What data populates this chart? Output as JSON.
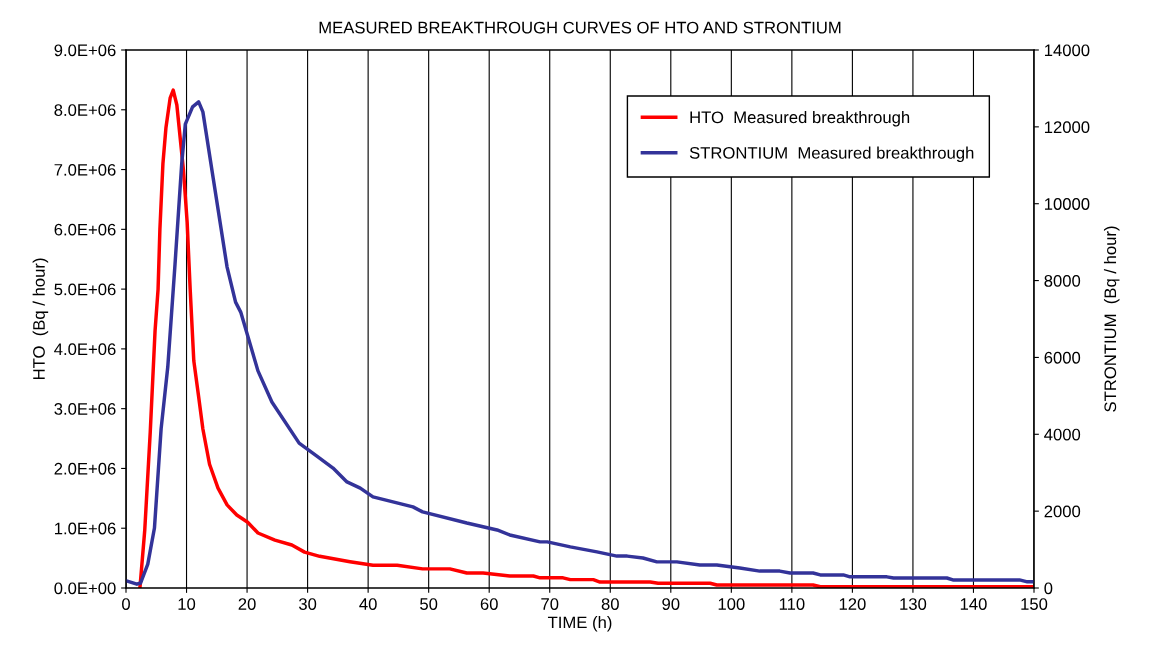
{
  "chart_data": {
    "type": "line",
    "title": "MEASURED BREAKTHROUGH CURVES OF HTO AND STRONTIUM",
    "xlabel": "TIME (h)",
    "ylabel": "HTO  (Bq / hour)",
    "y2label": "STRONTIUM  (Bq / hour)",
    "xlim": [
      0,
      150
    ],
    "xticks": [
      0,
      10,
      20,
      30,
      40,
      50,
      60,
      70,
      80,
      90,
      100,
      110,
      120,
      130,
      140,
      150
    ],
    "ylim": [
      0,
      9000000
    ],
    "yticks": [
      {
        "value": 0,
        "label": "0.0E+00"
      },
      {
        "value": 1000000,
        "label": "1.0E+06"
      },
      {
        "value": 2000000,
        "label": "2.0E+06"
      },
      {
        "value": 3000000,
        "label": "3.0E+06"
      },
      {
        "value": 4000000,
        "label": "4.0E+06"
      },
      {
        "value": 5000000,
        "label": "5.0E+06"
      },
      {
        "value": 6000000,
        "label": "6.0E+06"
      },
      {
        "value": 7000000,
        "label": "7.0E+06"
      },
      {
        "value": 8000000,
        "label": "8.0E+06"
      },
      {
        "value": 9000000,
        "label": "9.0E+06"
      }
    ],
    "y2lim": [
      0,
      14000
    ],
    "y2ticks": [
      0,
      2000,
      4000,
      6000,
      8000,
      10000,
      12000,
      14000
    ],
    "grid": "x",
    "legend": "top right",
    "line_style": "solid",
    "marker": "none",
    "series": [
      {
        "name": "HTO  Measured breakthrough",
        "color": "#ff0000",
        "x": [
          2.3,
          3.1,
          4.0,
          4.8,
          5.3,
          5.6,
          6.1,
          6.6,
          7.3,
          7.8,
          8.4,
          9.5,
          10.1,
          10.6,
          11.2,
          12.0,
          12.7,
          13.8,
          15.2,
          16.7,
          18.3,
          20.1,
          21.8,
          24.6,
          27.4,
          29.5,
          32.0,
          37.0,
          40.8,
          44.8,
          49.0,
          53.5,
          56.3,
          59.0,
          63.4,
          67.3,
          68.4,
          72.2,
          73.4,
          77.2,
          78.3,
          86.6,
          87.9,
          96.5,
          97.6,
          113.5,
          114.7,
          150
        ],
        "values": [
          0,
          970000,
          2600000,
          4300000,
          5000000,
          6000000,
          7100000,
          7700000,
          8200000,
          8330000,
          8080000,
          6980000,
          6120000,
          5000000,
          3800000,
          3200000,
          2660000,
          2070000,
          1670000,
          1390000,
          1220000,
          1100000,
          920000,
          800000,
          720000,
          600000,
          530000,
          440000,
          380000,
          380000,
          320000,
          320000,
          250000,
          250000,
          200000,
          200000,
          170000,
          170000,
          140000,
          140000,
          100000,
          100000,
          80000,
          80000,
          50000,
          50000,
          20000,
          20000
        ]
      },
      {
        "name": "STRONTIUM  Measured breakthrough",
        "color": "#333399",
        "axis": "y2",
        "x": [
          0.2,
          1.8,
          2.4,
          3.6,
          4.7,
          5.8,
          6.9,
          8.1,
          9.2,
          9.8,
          11.0,
          12.0,
          12.7,
          14.4,
          16.7,
          18.1,
          18.95,
          21.8,
          24.1,
          28.6,
          31.7,
          34.2,
          36.5,
          38.7,
          40.8,
          47.4,
          49.0,
          56.3,
          61.3,
          63.4,
          68.4,
          69.6,
          73.4,
          77.8,
          81.1,
          82.8,
          85.4,
          87.7,
          91.0,
          94.8,
          97.6,
          101.4,
          104.7,
          108.0,
          109.7,
          113.5,
          114.7,
          118.5,
          119.6,
          125.7,
          126.8,
          135.6,
          136.6,
          147.6,
          148.9,
          150
        ],
        "values": [
          180,
          100,
          130,
          620,
          1560,
          4140,
          5750,
          8430,
          11030,
          12070,
          12520,
          12650,
          12390,
          10670,
          8350,
          7440,
          7180,
          5650,
          4840,
          3770,
          3410,
          3120,
          2760,
          2600,
          2370,
          2110,
          1980,
          1690,
          1510,
          1380,
          1200,
          1200,
          1070,
          940,
          830,
          830,
          780,
          680,
          680,
          600,
          600,
          520,
          440,
          440,
          390,
          390,
          340,
          340,
          290,
          290,
          260,
          260,
          210,
          210,
          160,
          160
        ]
      }
    ]
  }
}
